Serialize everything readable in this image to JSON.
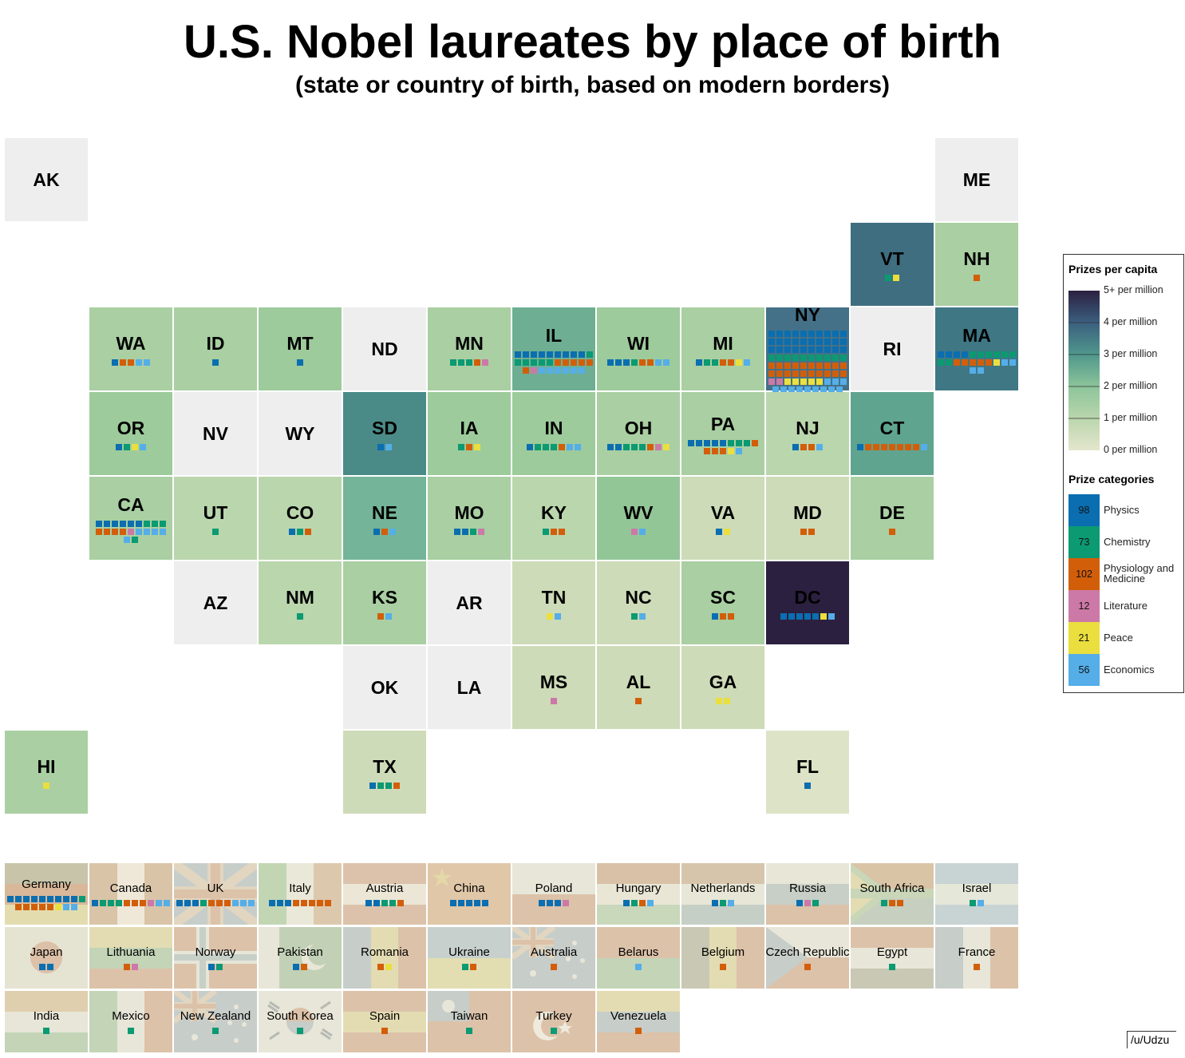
{
  "title": "U.S. Nobel laureates by place of birth",
  "subtitle": "(state or country of birth, based on modern borders)",
  "credit": "/u/Udzu",
  "category_colors": {
    "P": "#0a6eb0",
    "C": "#0b9a72",
    "M": "#d35e0a",
    "L": "#cc79a7",
    "Pe": "#eadf3e",
    "E": "#55aee8"
  },
  "legend": {
    "capita_title": "Prizes per capita",
    "capita_ticks": [
      "5+ per million",
      "4 per million",
      "3 per million",
      "2 per million",
      "1 per million",
      "0 per million"
    ],
    "categories_title": "Prize categories",
    "categories": [
      {
        "key": "P",
        "count": "98",
        "name": "Physics",
        "color": "#0a6eb0"
      },
      {
        "key": "C",
        "count": "73",
        "name": "Chemistry",
        "color": "#0b9a72"
      },
      {
        "key": "M",
        "count": "102",
        "name": "Physiology and Medicine",
        "color": "#d35e0a"
      },
      {
        "key": "L",
        "count": "12",
        "name": "Literature",
        "color": "#cc79a7"
      },
      {
        "key": "Pe",
        "count": "21",
        "name": "Peace",
        "color": "#eadf3e"
      },
      {
        "key": "E",
        "count": "56",
        "name": "Economics",
        "color": "#55aee8"
      }
    ]
  },
  "states": [
    {
      "abbr": "AK",
      "color": "#eeeeee",
      "prizes": []
    },
    {
      "abbr": "ME",
      "color": "#eeeeee",
      "prizes": []
    },
    {
      "abbr": "VT",
      "color": "#3f6e80",
      "prizes": [
        "C",
        "Pe"
      ]
    },
    {
      "abbr": "NH",
      "color": "#a9cfa2",
      "prizes": [
        "M"
      ]
    },
    {
      "abbr": "WA",
      "color": "#a9cfa2",
      "prizes": [
        "P",
        "M",
        "M",
        "E",
        "E"
      ]
    },
    {
      "abbr": "ID",
      "color": "#a9cfa2",
      "prizes": [
        "P"
      ]
    },
    {
      "abbr": "MT",
      "color": "#9dcb9b",
      "prizes": [
        "P"
      ]
    },
    {
      "abbr": "ND",
      "color": "#eeeeee",
      "prizes": []
    },
    {
      "abbr": "MN",
      "color": "#a9cfa2",
      "prizes": [
        "C",
        "C",
        "C",
        "M",
        "L"
      ]
    },
    {
      "abbr": "IL",
      "color": "#6eaf94",
      "prizes": [
        "P",
        "P",
        "P",
        "P",
        "P",
        "P",
        "P",
        "P",
        "P",
        "C",
        "C",
        "C",
        "C",
        "C",
        "C",
        "M",
        "M",
        "M",
        "M",
        "M",
        "M",
        "L",
        "E",
        "E",
        "E",
        "E",
        "E",
        "E"
      ]
    },
    {
      "abbr": "WI",
      "color": "#9dcb9b",
      "prizes": [
        "P",
        "P",
        "P",
        "C",
        "M",
        "M",
        "E",
        "E"
      ]
    },
    {
      "abbr": "MI",
      "color": "#a9cfa2",
      "prizes": [
        "P",
        "C",
        "C",
        "M",
        "M",
        "Pe",
        "E"
      ]
    },
    {
      "abbr": "NY",
      "color": "#447188",
      "prizes": [
        "P",
        "P",
        "P",
        "P",
        "P",
        "P",
        "P",
        "P",
        "P",
        "P",
        "P",
        "P",
        "P",
        "P",
        "P",
        "P",
        "P",
        "P",
        "P",
        "P",
        "P",
        "P",
        "P",
        "P",
        "P",
        "P",
        "P",
        "P",
        "P",
        "P",
        "C",
        "C",
        "C",
        "C",
        "C",
        "C",
        "C",
        "C",
        "C",
        "C",
        "M",
        "M",
        "M",
        "M",
        "M",
        "M",
        "M",
        "M",
        "M",
        "M",
        "M",
        "M",
        "M",
        "M",
        "M",
        "M",
        "M",
        "M",
        "M",
        "M",
        "L",
        "L",
        "Pe",
        "Pe",
        "Pe",
        "Pe",
        "Pe",
        "E",
        "E",
        "E",
        "E",
        "E",
        "E",
        "E",
        "E",
        "E",
        "E",
        "E",
        "E"
      ]
    },
    {
      "abbr": "RI",
      "color": "#eeeeee",
      "prizes": []
    },
    {
      "abbr": "MA",
      "color": "#3f7785",
      "prizes": [
        "P",
        "P",
        "P",
        "P",
        "C",
        "C",
        "C",
        "C",
        "C",
        "C",
        "C",
        "C",
        "M",
        "M",
        "M",
        "M",
        "M",
        "Pe",
        "E",
        "E",
        "E",
        "E"
      ]
    },
    {
      "abbr": "OR",
      "color": "#9dcb9b",
      "prizes": [
        "P",
        "C",
        "Pe",
        "E"
      ]
    },
    {
      "abbr": "NV",
      "color": "#eeeeee",
      "prizes": []
    },
    {
      "abbr": "WY",
      "color": "#eeeeee",
      "prizes": []
    },
    {
      "abbr": "SD",
      "color": "#4a8b88",
      "prizes": [
        "P",
        "E"
      ]
    },
    {
      "abbr": "IA",
      "color": "#9dcb9b",
      "prizes": [
        "C",
        "M",
        "Pe"
      ]
    },
    {
      "abbr": "IN",
      "color": "#9dcb9b",
      "prizes": [
        "P",
        "C",
        "C",
        "C",
        "M",
        "E",
        "E"
      ]
    },
    {
      "abbr": "OH",
      "color": "#a9cfa2",
      "prizes": [
        "P",
        "P",
        "C",
        "C",
        "C",
        "M",
        "L",
        "Pe"
      ]
    },
    {
      "abbr": "PA",
      "color": "#a9cfa2",
      "prizes": [
        "P",
        "P",
        "P",
        "P",
        "P",
        "C",
        "C",
        "C",
        "M",
        "M",
        "M",
        "M",
        "Pe",
        "E"
      ]
    },
    {
      "abbr": "NJ",
      "color": "#bad6ad",
      "prizes": [
        "P",
        "M",
        "M",
        "E"
      ]
    },
    {
      "abbr": "CT",
      "color": "#5fa48f",
      "prizes": [
        "P",
        "M",
        "M",
        "M",
        "M",
        "M",
        "M",
        "M",
        "E"
      ]
    },
    {
      "abbr": "CA",
      "color": "#a9cfa2",
      "prizes": [
        "P",
        "P",
        "P",
        "P",
        "P",
        "P",
        "C",
        "C",
        "C",
        "M",
        "M",
        "M",
        "M",
        "L",
        "E",
        "E",
        "E",
        "E",
        "E",
        "C"
      ]
    },
    {
      "abbr": "UT",
      "color": "#bad6ad",
      "prizes": [
        "C"
      ]
    },
    {
      "abbr": "CO",
      "color": "#bad6ad",
      "prizes": [
        "P",
        "C",
        "M"
      ]
    },
    {
      "abbr": "NE",
      "color": "#74b498",
      "prizes": [
        "P",
        "M",
        "E"
      ]
    },
    {
      "abbr": "MO",
      "color": "#a9cfa2",
      "prizes": [
        "P",
        "P",
        "C",
        "L"
      ]
    },
    {
      "abbr": "KY",
      "color": "#bad6ad",
      "prizes": [
        "C",
        "M",
        "M"
      ]
    },
    {
      "abbr": "WV",
      "color": "#93c697",
      "prizes": [
        "L",
        "E"
      ]
    },
    {
      "abbr": "VA",
      "color": "#cddbb8",
      "prizes": [
        "P",
        "Pe"
      ]
    },
    {
      "abbr": "MD",
      "color": "#cddbb8",
      "prizes": [
        "M",
        "M"
      ]
    },
    {
      "abbr": "DE",
      "color": "#a9cfa2",
      "prizes": [
        "M"
      ]
    },
    {
      "abbr": "AZ",
      "color": "#eeeeee",
      "prizes": []
    },
    {
      "abbr": "NM",
      "color": "#bad6ad",
      "prizes": [
        "C"
      ]
    },
    {
      "abbr": "KS",
      "color": "#a9cfa2",
      "prizes": [
        "M",
        "E"
      ]
    },
    {
      "abbr": "AR",
      "color": "#eeeeee",
      "prizes": []
    },
    {
      "abbr": "TN",
      "color": "#cddbb8",
      "prizes": [
        "Pe",
        "E"
      ]
    },
    {
      "abbr": "NC",
      "color": "#cddbb8",
      "prizes": [
        "C",
        "E"
      ]
    },
    {
      "abbr": "SC",
      "color": "#a9cfa2",
      "prizes": [
        "P",
        "M",
        "M"
      ]
    },
    {
      "abbr": "DC",
      "color": "#2c2040",
      "prizes": [
        "P",
        "P",
        "P",
        "P",
        "P",
        "Pe",
        "E"
      ]
    },
    {
      "abbr": "OK",
      "color": "#eeeeee",
      "prizes": []
    },
    {
      "abbr": "LA",
      "color": "#eeeeee",
      "prizes": []
    },
    {
      "abbr": "MS",
      "color": "#cddbb8",
      "prizes": [
        "L"
      ]
    },
    {
      "abbr": "AL",
      "color": "#cddbb8",
      "prizes": [
        "M"
      ]
    },
    {
      "abbr": "GA",
      "color": "#cddbb8",
      "prizes": [
        "Pe",
        "Pe"
      ]
    },
    {
      "abbr": "HI",
      "color": "#a9cfa2",
      "prizes": [
        "Pe"
      ]
    },
    {
      "abbr": "TX",
      "color": "#cddbb8",
      "prizes": [
        "P",
        "C",
        "C",
        "M"
      ]
    },
    {
      "abbr": "FL",
      "color": "#dde3c6",
      "prizes": [
        "P"
      ]
    }
  ],
  "countries": [
    {
      "name": "Germany",
      "flag": "h3",
      "colors": [
        "#c7c4aa",
        "#d9b89a",
        "#e3dcae"
      ],
      "prizes": [
        "P",
        "P",
        "P",
        "P",
        "P",
        "P",
        "P",
        "P",
        "P",
        "C",
        "M",
        "M",
        "M",
        "M",
        "M",
        "Pe",
        "E",
        "E"
      ]
    },
    {
      "name": "Canada",
      "flag": "v3",
      "colors": [
        "#d9c4a8",
        "#efe8d8",
        "#d9c4a8"
      ],
      "prizes": [
        "P",
        "C",
        "C",
        "C",
        "M",
        "M",
        "M",
        "L",
        "E",
        "E"
      ]
    },
    {
      "name": "UK",
      "flag": "uk",
      "colors": [
        "#c7cdc9",
        "#e2d6c0"
      ],
      "prizes": [
        "P",
        "P",
        "P",
        "C",
        "M",
        "M",
        "M",
        "E",
        "E",
        "E"
      ]
    },
    {
      "name": "Italy",
      "flag": "v3",
      "colors": [
        "#c2d6b3",
        "#eae8d8",
        "#dcc9ad"
      ],
      "prizes": [
        "P",
        "P",
        "P",
        "M",
        "M",
        "M",
        "M",
        "M"
      ]
    },
    {
      "name": "Austria",
      "flag": "h3",
      "colors": [
        "#dcc2aa",
        "#ebe6d6",
        "#dcc2aa"
      ],
      "prizes": [
        "P",
        "P",
        "C",
        "C",
        "M"
      ]
    },
    {
      "name": "China",
      "flag": "solid",
      "colors": [
        "#dfc7a8"
      ],
      "prizes": [
        "P",
        "P",
        "P",
        "P",
        "P"
      ]
    },
    {
      "name": "Poland",
      "flag": "h2",
      "colors": [
        "#e7e6d8",
        "#dcc2a9"
      ],
      "prizes": [
        "P",
        "P",
        "P",
        "L"
      ]
    },
    {
      "name": "Hungary",
      "flag": "h3",
      "colors": [
        "#d8c1a6",
        "#eae6d6",
        "#c9d7bb"
      ],
      "prizes": [
        "P",
        "C",
        "M",
        "E"
      ]
    },
    {
      "name": "Netherlands",
      "flag": "h3",
      "colors": [
        "#d6c5ab",
        "#e8e6d6",
        "#c6cfc6"
      ],
      "prizes": [
        "P",
        "C",
        "E"
      ]
    },
    {
      "name": "Russia",
      "flag": "h3",
      "colors": [
        "#e8e6d6",
        "#c7cfc6",
        "#dcc2a9"
      ],
      "prizes": [
        "P",
        "L",
        "C"
      ]
    },
    {
      "name": "South Africa",
      "flag": "za",
      "colors": [
        "#d9c4a6",
        "#c6cfc0",
        "#c9d6b8"
      ],
      "prizes": [
        "C",
        "M",
        "M"
      ]
    },
    {
      "name": "Israel",
      "flag": "h3",
      "colors": [
        "#c8d3d3",
        "#e5e7d8",
        "#c8d3d3"
      ],
      "prizes": [
        "C",
        "E"
      ]
    },
    {
      "name": "Japan",
      "flag": "jp",
      "colors": [
        "#e5e3d2",
        "#dcc0a7"
      ],
      "prizes": [
        "P",
        "P"
      ]
    },
    {
      "name": "Lithuania",
      "flag": "h3",
      "colors": [
        "#e3dcb2",
        "#c3d4b7",
        "#dcc2a9"
      ],
      "prizes": [
        "M",
        "L"
      ]
    },
    {
      "name": "Norway",
      "flag": "cross",
      "colors": [
        "#dcc2a9",
        "#c7d0c7"
      ],
      "prizes": [
        "P",
        "C"
      ]
    },
    {
      "name": "Pakistan",
      "flag": "v2",
      "colors": [
        "#e7e6d8",
        "#c2d1b6"
      ],
      "prizes": [
        "P",
        "M"
      ]
    },
    {
      "name": "Romania",
      "flag": "v3",
      "colors": [
        "#c7cdc9",
        "#e3dcb2",
        "#dcc2a9"
      ],
      "prizes": [
        "M",
        "Pe"
      ]
    },
    {
      "name": "Ukraine",
      "flag": "h2",
      "colors": [
        "#c7d0cd",
        "#e2deb2"
      ],
      "prizes": [
        "C",
        "M"
      ]
    },
    {
      "name": "Australia",
      "flag": "au",
      "colors": [
        "#c7cdc9",
        "#e2d6c0"
      ],
      "prizes": [
        "M"
      ]
    },
    {
      "name": "Belarus",
      "flag": "h2",
      "colors": [
        "#dcc2a9",
        "#c3d4b7"
      ],
      "prizes": [
        "E"
      ]
    },
    {
      "name": "Belgium",
      "flag": "v3",
      "colors": [
        "#c8c8b4",
        "#e3dcb2",
        "#dcc2a9"
      ],
      "prizes": [
        "M"
      ]
    },
    {
      "name": "Czech Republic",
      "flag": "cz",
      "colors": [
        "#e7e6d8",
        "#dcc2a9",
        "#c7cdc9"
      ],
      "prizes": [
        "M"
      ]
    },
    {
      "name": "Egypt",
      "flag": "h3",
      "colors": [
        "#dcc2a9",
        "#e7e6d8",
        "#c8c8b4"
      ],
      "prizes": [
        "C"
      ]
    },
    {
      "name": "France",
      "flag": "v3",
      "colors": [
        "#c7cdc9",
        "#e7e6d8",
        "#dcc2a9"
      ],
      "prizes": [
        "M"
      ]
    },
    {
      "name": "India",
      "flag": "h3",
      "colors": [
        "#e0cfae",
        "#e7e6d8",
        "#c3d4b7"
      ],
      "prizes": [
        "C"
      ]
    },
    {
      "name": "Mexico",
      "flag": "v3",
      "colors": [
        "#c3d4b7",
        "#e7e6d8",
        "#dcc2a9"
      ],
      "prizes": [
        "C"
      ]
    },
    {
      "name": "New Zealand",
      "flag": "au",
      "colors": [
        "#c7cdc9",
        "#e2d6c0"
      ],
      "prizes": [
        "C"
      ]
    },
    {
      "name": "South Korea",
      "flag": "kr",
      "colors": [
        "#e7e6d8",
        "#dcc2a9",
        "#c7cdc9"
      ],
      "prizes": [
        "C"
      ]
    },
    {
      "name": "Spain",
      "flag": "h3",
      "colors": [
        "#dcc2a9",
        "#e3dcb2",
        "#dcc2a9"
      ],
      "prizes": [
        "M"
      ]
    },
    {
      "name": "Taiwan",
      "flag": "tw",
      "colors": [
        "#dcc2a9",
        "#c7cdc9"
      ],
      "prizes": [
        "C"
      ]
    },
    {
      "name": "Turkey",
      "flag": "tr",
      "colors": [
        "#dcc2a9",
        "#efeadb"
      ],
      "prizes": [
        "C"
      ]
    },
    {
      "name": "Venezuela",
      "flag": "h3",
      "colors": [
        "#e3dcb2",
        "#c7cdc9",
        "#dcc2a9"
      ],
      "prizes": [
        "M"
      ]
    }
  ]
}
